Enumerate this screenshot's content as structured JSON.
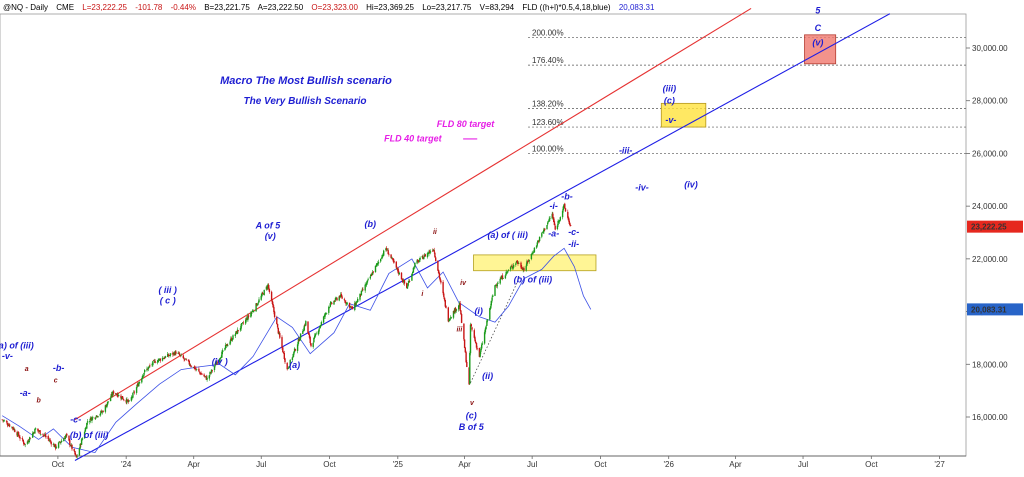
{
  "header": {
    "symbol": "@NQ - Daily",
    "exchange": "CME",
    "last": "L=23,222.25",
    "change": "-101.78",
    "change_pct": "-0.44%",
    "bid": "B=23,221.75",
    "ask": "A=23,222.50",
    "open": "O=23,323.00",
    "high": "Hi=23,369.25",
    "low": "Lo=23,217.75",
    "volume": "V=83,294",
    "fld": "FLD ((h+l)*0.5,4,18,blue)",
    "fld_value": "20,083.31"
  },
  "colors": {
    "up": "#1a9a1a",
    "down": "#c81414",
    "label_blue": "#1e1ed2",
    "magenta": "#e61ee6",
    "fld_line": "#3c50e6",
    "upper_channel": "#e63232",
    "lower_channel": "#1e1ee6",
    "price_tag": "#e6281e",
    "fld_tag": "#2864c8"
  },
  "chart_data": {
    "type": "candlestick",
    "title": "Macro The Most Bullish scenario",
    "subtitle": "The Very Bullish Scenario",
    "ylim": [
      15000,
      32000
    ],
    "y_ticks": [
      16000,
      18000,
      20000,
      22000,
      24000,
      26000,
      28000,
      30000
    ],
    "y_tick_labels": [
      "16,000.00",
      "18,000.00",
      "20,000.00",
      "22,000.00",
      "24,000.00",
      "26,000.00",
      "28,000.00",
      "30,000.00"
    ],
    "x_ticks": [
      {
        "label": "Oct",
        "date": "2023-10-01"
      },
      {
        "label": "'24",
        "date": "2024-01-01"
      },
      {
        "label": "Apr",
        "date": "2024-04-01"
      },
      {
        "label": "Jul",
        "date": "2024-07-01"
      },
      {
        "label": "Oct",
        "date": "2024-10-01"
      },
      {
        "label": "'25",
        "date": "2025-01-01"
      },
      {
        "label": "Apr",
        "date": "2025-04-01"
      },
      {
        "label": "Jul",
        "date": "2025-07-01"
      },
      {
        "label": "Oct",
        "date": "2025-10-01"
      },
      {
        "label": "'26",
        "date": "2026-01-01"
      },
      {
        "label": "Apr",
        "date": "2026-04-01"
      },
      {
        "label": "Jul",
        "date": "2026-07-01"
      },
      {
        "label": "Oct",
        "date": "2026-10-01"
      },
      {
        "label": "'27",
        "date": "2027-01-01"
      }
    ],
    "price_path": [
      [
        "2023-07-18",
        15900
      ],
      [
        "2023-08-01",
        15600
      ],
      [
        "2023-08-18",
        14950
      ],
      [
        "2023-09-01",
        15550
      ],
      [
        "2023-09-15",
        15250
      ],
      [
        "2023-09-28",
        14850
      ],
      [
        "2023-10-12",
        15300
      ],
      [
        "2023-10-26",
        14450
      ],
      [
        "2023-11-10",
        15850
      ],
      [
        "2023-11-30",
        16200
      ],
      [
        "2023-12-15",
        16950
      ],
      [
        "2024-01-05",
        16550
      ],
      [
        "2024-01-25",
        17700
      ],
      [
        "2024-02-08",
        18100
      ],
      [
        "2024-03-08",
        18450
      ],
      [
        "2024-04-19",
        17450
      ],
      [
        "2024-05-15",
        18700
      ],
      [
        "2024-06-20",
        20050
      ],
      [
        "2024-07-10",
        21000
      ],
      [
        "2024-07-25",
        19100
      ],
      [
        "2024-08-05",
        17800
      ],
      [
        "2024-08-30",
        19600
      ],
      [
        "2024-09-06",
        18700
      ],
      [
        "2024-09-30",
        20200
      ],
      [
        "2024-10-15",
        20600
      ],
      [
        "2024-11-01",
        20100
      ],
      [
        "2024-12-16",
        22400
      ],
      [
        "2025-01-13",
        20900
      ],
      [
        "2025-01-24",
        21800
      ],
      [
        "2025-02-18",
        22400
      ],
      [
        "2025-03-10",
        19700
      ],
      [
        "2025-03-25",
        20300
      ],
      [
        "2025-04-07",
        17200
      ],
      [
        "2025-04-09",
        19500
      ],
      [
        "2025-04-21",
        18300
      ],
      [
        "2025-05-12",
        21000
      ],
      [
        "2025-06-10",
        21900
      ],
      [
        "2025-06-20",
        21600
      ],
      [
        "2025-07-15",
        23000
      ],
      [
        "2025-07-28",
        23700
      ],
      [
        "2025-08-01",
        23100
      ],
      [
        "2025-08-13",
        24000
      ],
      [
        "2025-08-22",
        23200
      ]
    ],
    "fld_path": [
      [
        "2023-07-18",
        16050
      ],
      [
        "2023-08-10",
        15650
      ],
      [
        "2023-09-05",
        15150
      ],
      [
        "2023-09-25",
        15550
      ],
      [
        "2023-10-20",
        14850
      ],
      [
        "2023-11-20",
        14650
      ],
      [
        "2023-12-18",
        15800
      ],
      [
        "2024-01-15",
        16500
      ],
      [
        "2024-02-15",
        17250
      ],
      [
        "2024-03-15",
        17800
      ],
      [
        "2024-04-08",
        17900
      ],
      [
        "2024-05-06",
        18000
      ],
      [
        "2024-05-27",
        17600
      ],
      [
        "2024-06-20",
        18300
      ],
      [
        "2024-07-22",
        19800
      ],
      [
        "2024-08-12",
        19400
      ],
      [
        "2024-09-05",
        18400
      ],
      [
        "2024-10-07",
        19200
      ],
      [
        "2024-10-28",
        20300
      ],
      [
        "2024-11-25",
        20050
      ],
      [
        "2024-12-20",
        21450
      ],
      [
        "2025-01-20",
        22000
      ],
      [
        "2025-02-10",
        20900
      ],
      [
        "2025-03-03",
        21500
      ],
      [
        "2025-03-24",
        20350
      ],
      [
        "2025-04-21",
        19800
      ],
      [
        "2025-05-12",
        19600
      ],
      [
        "2025-05-30",
        20200
      ],
      [
        "2025-06-20",
        21250
      ],
      [
        "2025-07-14",
        21600
      ],
      [
        "2025-07-30",
        22100
      ],
      [
        "2025-08-13",
        22400
      ],
      [
        "2025-08-27",
        21700
      ],
      [
        "2025-09-08",
        20600
      ],
      [
        "2025-09-18",
        20083
      ]
    ],
    "channel_lines": [
      {
        "name": "upper",
        "start": [
          "2023-10-24",
          15900
        ],
        "end": [
          "2026-04-22",
          31500
        ]
      },
      {
        "name": "lower",
        "start": [
          "2023-10-24",
          14350
        ],
        "end": [
          "2026-10-26",
          31300
        ]
      },
      {
        "name": "magenta",
        "start": [
          "2025-03-30",
          26550
        ],
        "end": [
          "2025-04-18",
          26550
        ]
      }
    ],
    "fib_levels": [
      {
        "label": "200.00%",
        "value": 30400
      },
      {
        "label": "176.40%",
        "value": 29350
      },
      {
        "label": "138.20%",
        "value": 27700
      },
      {
        "label": "123.60%",
        "value": 27000
      },
      {
        "label": "100.00%",
        "value": 26000
      }
    ],
    "target_boxes": [
      {
        "name": "yellow-zone-1",
        "x1": "2025-04-13",
        "x2": "2025-09-25",
        "y1": 22150,
        "y2": 21550
      },
      {
        "name": "yellow-zone-2",
        "x1": "2025-12-22",
        "x2": "2026-02-20",
        "y1": 27900,
        "y2": 27000
      },
      {
        "name": "red-zone",
        "x1": "2026-07-03",
        "x2": "2026-08-14",
        "y1": 30500,
        "y2": 29400
      }
    ],
    "annotations": [
      {
        "text": "(a) of (iii)",
        "x": "2023-08-04",
        "y": 18600,
        "color": "blue"
      },
      {
        "text": "-v-",
        "x": "2023-07-25",
        "y": 18200,
        "color": "blue"
      },
      {
        "text": "-a-",
        "x": "2023-08-18",
        "y": 16800,
        "color": "blue"
      },
      {
        "text": "a",
        "x": "2023-08-20",
        "y": 17750,
        "color": "darkred"
      },
      {
        "text": "b",
        "x": "2023-09-05",
        "y": 16550,
        "color": "darkred"
      },
      {
        "text": "c",
        "x": "2023-09-28",
        "y": 17300,
        "color": "darkred"
      },
      {
        "text": "-b-",
        "x": "2023-10-02",
        "y": 17750,
        "color": "blue"
      },
      {
        "text": "-c-",
        "x": "2023-10-25",
        "y": 15800,
        "color": "blue"
      },
      {
        "text": "(b) of (iii)",
        "x": "2023-11-12",
        "y": 15200,
        "color": "blue"
      },
      {
        "text": "( iii )",
        "x": "2024-02-26",
        "y": 20700,
        "color": "blue"
      },
      {
        "text": "( c )",
        "x": "2024-02-26",
        "y": 20300,
        "color": "blue"
      },
      {
        "text": "(iv )",
        "x": "2024-05-06",
        "y": 18000,
        "color": "blue"
      },
      {
        "text": "A of 5",
        "x": "2024-07-10",
        "y": 23150,
        "color": "blue"
      },
      {
        "text": "(v)",
        "x": "2024-07-13",
        "y": 22750,
        "color": "blue"
      },
      {
        "text": "(a)",
        "x": "2024-08-15",
        "y": 17850,
        "color": "blue"
      },
      {
        "text": "(b)",
        "x": "2024-11-25",
        "y": 23200,
        "color": "blue"
      },
      {
        "text": "ii",
        "x": "2025-02-20",
        "y": 22950,
        "color": "darkred"
      },
      {
        "text": "i",
        "x": "2025-02-03",
        "y": 20600,
        "color": "darkred"
      },
      {
        "text": "iv",
        "x": "2025-03-30",
        "y": 21000,
        "color": "darkred"
      },
      {
        "text": "iii",
        "x": "2025-03-25",
        "y": 19250,
        "color": "darkred"
      },
      {
        "text": "v",
        "x": "2025-04-11",
        "y": 16450,
        "color": "darkred"
      },
      {
        "text": "(c)",
        "x": "2025-04-10",
        "y": 15950,
        "color": "blue"
      },
      {
        "text": "B of 5",
        "x": "2025-04-10",
        "y": 15500,
        "color": "blue"
      },
      {
        "text": "(i)",
        "x": "2025-04-20",
        "y": 19900,
        "color": "blue"
      },
      {
        "text": "(ii)",
        "x": "2025-05-02",
        "y": 17450,
        "color": "blue"
      },
      {
        "text": "(a) of ( iii)",
        "x": "2025-05-29",
        "y": 22800,
        "color": "blue"
      },
      {
        "text": "(b) of (iii)",
        "x": "2025-07-02",
        "y": 21100,
        "color": "blue"
      },
      {
        "text": "-i-",
        "x": "2025-07-30",
        "y": 23900,
        "color": "blue"
      },
      {
        "text": "-b-",
        "x": "2025-08-17",
        "y": 24250,
        "color": "blue"
      },
      {
        "text": "-a-",
        "x": "2025-07-30",
        "y": 22850,
        "color": "blue"
      },
      {
        "text": "-c-",
        "x": "2025-08-26",
        "y": 22900,
        "color": "blue"
      },
      {
        "text": "-ii-",
        "x": "2025-08-26",
        "y": 22450,
        "color": "blue"
      },
      {
        "text": "-iii-",
        "x": "2025-11-04",
        "y": 26000,
        "color": "blue"
      },
      {
        "text": "-iv-",
        "x": "2025-11-26",
        "y": 24600,
        "color": "blue"
      },
      {
        "text": "(iv)",
        "x": "2026-01-31",
        "y": 24700,
        "color": "blue"
      },
      {
        "text": "(iii)",
        "x": "2026-01-02",
        "y": 28350,
        "color": "blue"
      },
      {
        "text": "(c)",
        "x": "2026-01-02",
        "y": 27900,
        "color": "blue"
      },
      {
        "text": "-v-",
        "x": "2026-01-04",
        "y": 27150,
        "color": "blue"
      },
      {
        "text": "5",
        "x": "2026-07-21",
        "y": 31300,
        "color": "blue"
      },
      {
        "text": "C",
        "x": "2026-07-21",
        "y": 30650,
        "color": "blue"
      },
      {
        "text": "(v)",
        "x": "2026-07-21",
        "y": 30100,
        "color": "blue"
      },
      {
        "text": "FLD 80 target",
        "x": "2025-05-11",
        "y": 27000,
        "color": "magenta"
      },
      {
        "text": "FLD 40 target",
        "x": "2025-03-01",
        "y": 26450,
        "color": "magenta"
      }
    ],
    "price_tags": [
      {
        "label": "23,222.25",
        "value": 23222,
        "color": "red"
      },
      {
        "label": "20,083.31",
        "value": 20083,
        "color": "blue"
      }
    ]
  }
}
